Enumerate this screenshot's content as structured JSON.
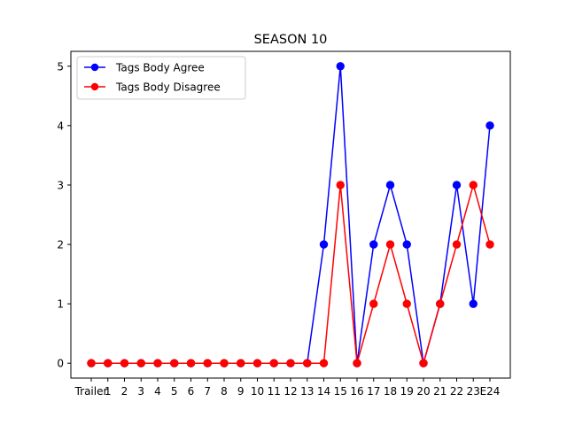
{
  "chart_data": {
    "type": "line",
    "title": "SEASON 10",
    "xlabel": "",
    "ylabel": "",
    "categories": [
      "Trailer",
      "1",
      "2",
      "3",
      "4",
      "5",
      "6",
      "7",
      "8",
      "9",
      "10",
      "11",
      "12",
      "13",
      "14",
      "15",
      "16",
      "17",
      "18",
      "19",
      "20",
      "21",
      "22",
      "23",
      "E24"
    ],
    "ylim": [
      -0.25,
      5.25
    ],
    "yticks": [
      0,
      1,
      2,
      3,
      4,
      5
    ],
    "grid": false,
    "legend_position": "upper left",
    "series": [
      {
        "name": "Tags Body Agree",
        "color": "#0000ff",
        "values": [
          0,
          0,
          0,
          0,
          0,
          0,
          0,
          0,
          0,
          0,
          0,
          0,
          0,
          0,
          2,
          5,
          0,
          2,
          3,
          2,
          0,
          1,
          3,
          1,
          4
        ]
      },
      {
        "name": "Tags Body Disagree",
        "color": "#ff0000",
        "values": [
          0,
          0,
          0,
          0,
          0,
          0,
          0,
          0,
          0,
          0,
          0,
          0,
          0,
          0,
          0,
          3,
          0,
          1,
          2,
          1,
          0,
          1,
          2,
          3,
          2
        ]
      }
    ]
  }
}
